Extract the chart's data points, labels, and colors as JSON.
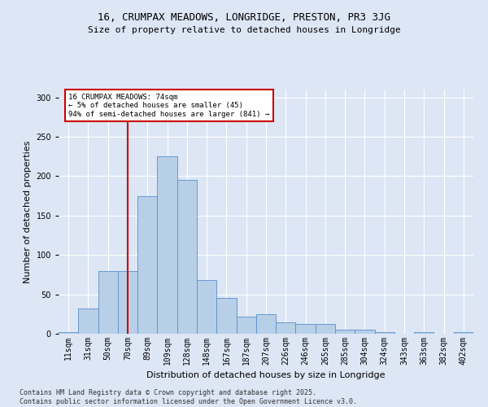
{
  "title": "16, CRUMPAX MEADOWS, LONGRIDGE, PRESTON, PR3 3JG",
  "subtitle": "Size of property relative to detached houses in Longridge",
  "xlabel": "Distribution of detached houses by size in Longridge",
  "ylabel": "Number of detached properties",
  "bar_color": "#b8cfe8",
  "bar_edge_color": "#5b8fc9",
  "background_color": "#dce6f5",
  "grid_color": "#ffffff",
  "fig_background": "#dce6f5",
  "categories": [
    "11sqm",
    "31sqm",
    "50sqm",
    "70sqm",
    "89sqm",
    "109sqm",
    "128sqm",
    "148sqm",
    "167sqm",
    "187sqm",
    "207sqm",
    "226sqm",
    "246sqm",
    "265sqm",
    "285sqm",
    "304sqm",
    "324sqm",
    "343sqm",
    "363sqm",
    "382sqm",
    "402sqm"
  ],
  "values": [
    2,
    32,
    80,
    80,
    175,
    225,
    195,
    68,
    45,
    22,
    25,
    14,
    12,
    12,
    5,
    5,
    2,
    0,
    2,
    0,
    2
  ],
  "vline_x_index": 3,
  "vline_color": "#cc0000",
  "annotation_text": "16 CRUMPAX MEADOWS: 74sqm\n← 5% of detached houses are smaller (45)\n94% of semi-detached houses are larger (841) →",
  "annotation_box_color": "#ffffff",
  "annotation_box_edge_color": "#cc0000",
  "footnote": "Contains HM Land Registry data © Crown copyright and database right 2025.\nContains public sector information licensed under the Open Government Licence v3.0.",
  "ylim": [
    0,
    310
  ],
  "yticks": [
    0,
    50,
    100,
    150,
    200,
    250,
    300
  ],
  "title_fontsize": 9,
  "subtitle_fontsize": 8,
  "ylabel_fontsize": 8,
  "xlabel_fontsize": 8,
  "tick_fontsize": 7,
  "footnote_fontsize": 6
}
